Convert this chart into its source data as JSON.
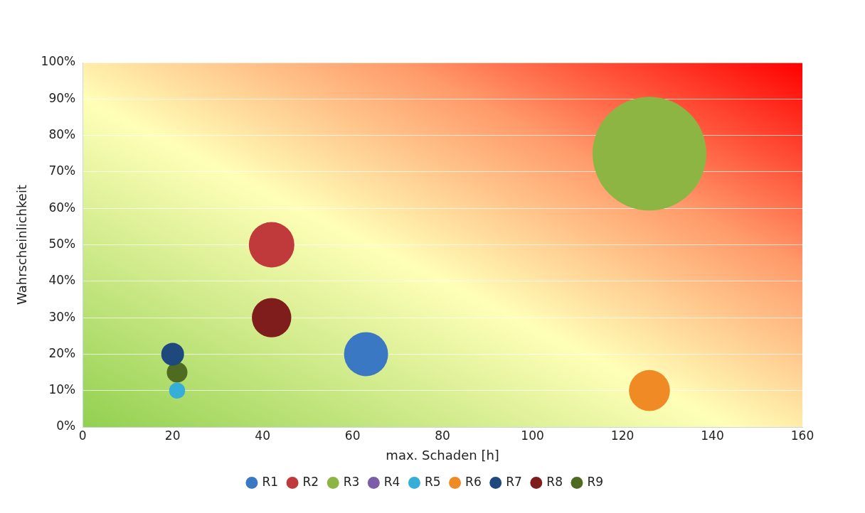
{
  "chart_data": {
    "type": "bubble",
    "xlabel": "max. Schaden [h]",
    "ylabel": "Wahrscheinlichkeit",
    "xlim": [
      0,
      160
    ],
    "xticks": [
      0,
      20,
      40,
      60,
      80,
      100,
      120,
      140,
      160
    ],
    "ylim": [
      0,
      100
    ],
    "yticks": [
      {
        "value": 0,
        "label": "0%"
      },
      {
        "value": 10,
        "label": "10%"
      },
      {
        "value": 20,
        "label": "20%"
      },
      {
        "value": 30,
        "label": "30%"
      },
      {
        "value": 40,
        "label": "40%"
      },
      {
        "value": 50,
        "label": "50%"
      },
      {
        "value": 60,
        "label": "60%"
      },
      {
        "value": 70,
        "label": "70%"
      },
      {
        "value": 80,
        "label": "80%"
      },
      {
        "value": 90,
        "label": "90%"
      },
      {
        "value": 100,
        "label": "100%"
      }
    ],
    "grid": "y",
    "legend": "bottom",
    "marker": "circle",
    "series": [
      {
        "name": "R1",
        "color": "#3a78c3",
        "x": [
          63
        ],
        "values": [
          20
        ],
        "sizes": [
          0.15
        ]
      },
      {
        "name": "R2",
        "color": "#c0393b",
        "x": [
          42
        ],
        "values": [
          50
        ],
        "sizes": [
          0.16
        ]
      },
      {
        "name": "R3",
        "color": "#8db543",
        "x": [
          126
        ],
        "values": [
          75
        ],
        "sizes": [
          1
        ]
      },
      {
        "name": "R4",
        "color": "#7b5ea7"
      },
      {
        "name": "R5",
        "color": "#35aed8",
        "x": [
          21
        ],
        "values": [
          10
        ],
        "sizes": [
          0.02
        ]
      },
      {
        "name": "R6",
        "color": "#f08a24",
        "x": [
          126
        ],
        "values": [
          10
        ],
        "sizes": [
          0.13
        ]
      },
      {
        "name": "R7",
        "color": "#1f497d",
        "x": [
          20
        ],
        "values": [
          20
        ],
        "sizes": [
          0.04
        ]
      },
      {
        "name": "R8",
        "color": "#7f1d1d",
        "x": [
          42
        ],
        "values": [
          30
        ],
        "sizes": [
          0.12
        ]
      },
      {
        "name": "R9",
        "color": "#4f6b22",
        "x": [
          21
        ],
        "values": [
          15
        ],
        "sizes": [
          0.033
        ]
      }
    ]
  }
}
